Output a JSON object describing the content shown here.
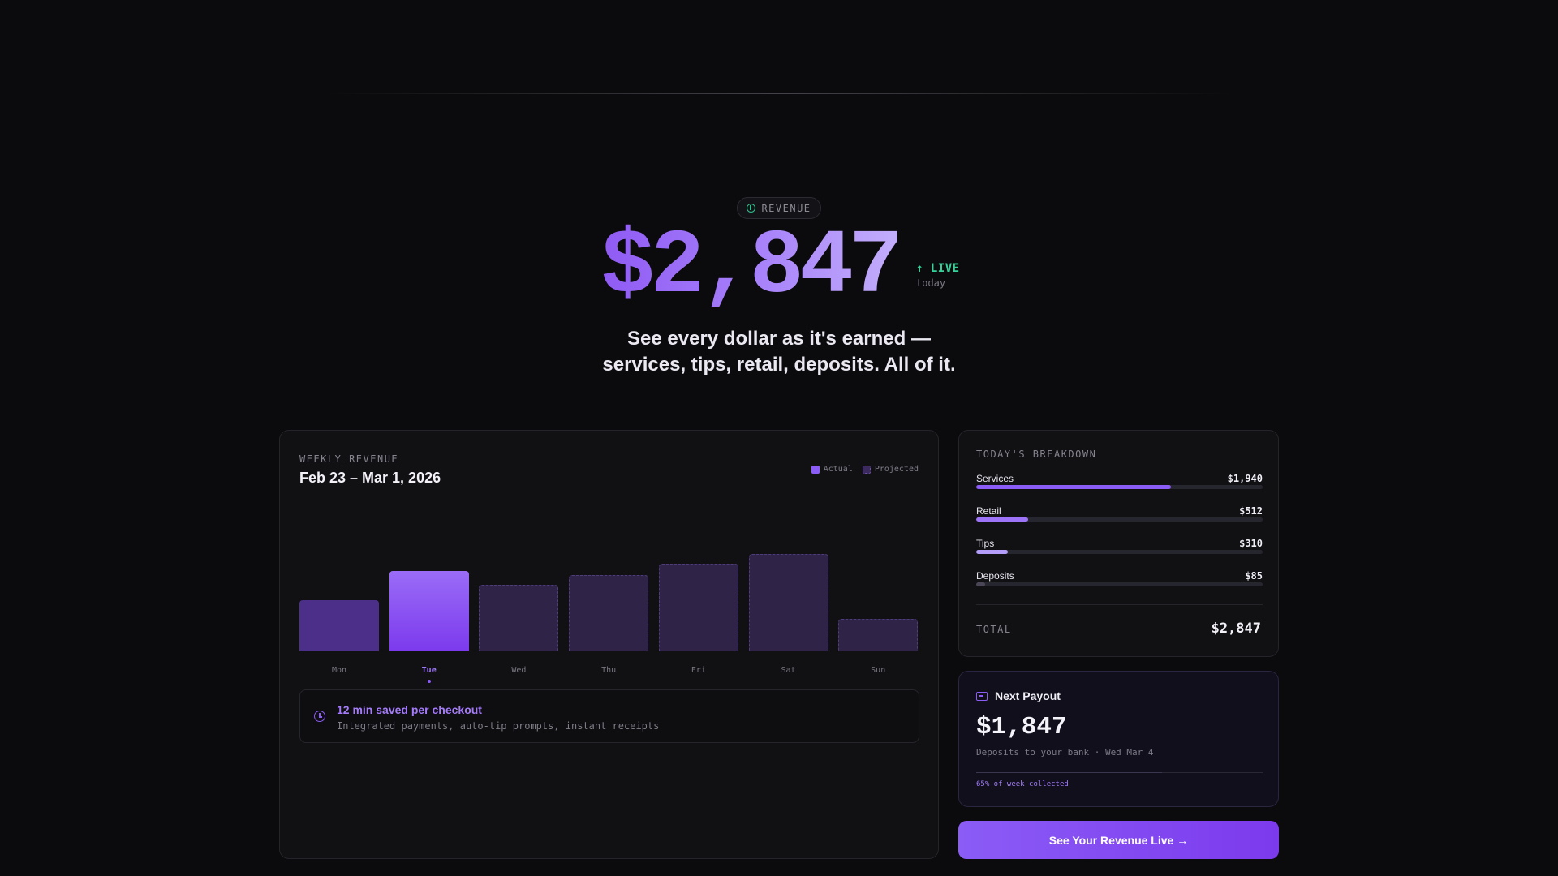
{
  "hero": {
    "badge": "REVENUE",
    "amount": "$2,847",
    "live": "↑ LIVE",
    "live_sub": "today",
    "tagline_1": "See every dollar as it's earned —",
    "tagline_2": "services, tips, retail, deposits. All of it."
  },
  "weekly": {
    "title": "WEEKLY REVENUE",
    "range": "Feb 23 – Mar 1, 2026",
    "legend": {
      "actual": "Actual",
      "projected": "Projected"
    },
    "tip_title": "12 min saved per checkout",
    "tip_desc": "Integrated payments, auto-tip prompts, instant receipts"
  },
  "chart_data": {
    "type": "bar",
    "categories": [
      "Mon",
      "Tue",
      "Wed",
      "Thu",
      "Fri",
      "Sat",
      "Sun"
    ],
    "values": [
      0.36,
      0.57,
      0.47,
      0.54,
      0.62,
      0.69,
      0.23
    ],
    "status": [
      "actual",
      "actual",
      "projected",
      "projected",
      "projected",
      "projected",
      "projected"
    ],
    "highlight": "Tue",
    "legend": [
      "Actual",
      "Projected"
    ],
    "title": "WEEKLY REVENUE",
    "subtitle": "Feb 23 – Mar 1, 2026"
  },
  "breakdown": {
    "title": "TODAY'S BREAKDOWN",
    "items": [
      {
        "name": "Services",
        "value": "$1,940",
        "fraction": 0.68,
        "color": "#8b5cf6"
      },
      {
        "name": "Retail",
        "value": "$512",
        "fraction": 0.18,
        "color": "#9d74f7"
      },
      {
        "name": "Tips",
        "value": "$310",
        "fraction": 0.11,
        "color": "#b49cf9"
      },
      {
        "name": "Deposits",
        "value": "$85",
        "fraction": 0.03,
        "color": "#4a4656"
      }
    ],
    "total_label": "TOTAL",
    "total_value": "$2,847"
  },
  "payout": {
    "title": "Next Payout",
    "amount": "$1,847",
    "sub": "Deposits to your bank · Wed Mar 4",
    "progress": 0.65,
    "progress_label": "65% of week collected"
  },
  "cta": {
    "label": "See Your Revenue Live →"
  }
}
